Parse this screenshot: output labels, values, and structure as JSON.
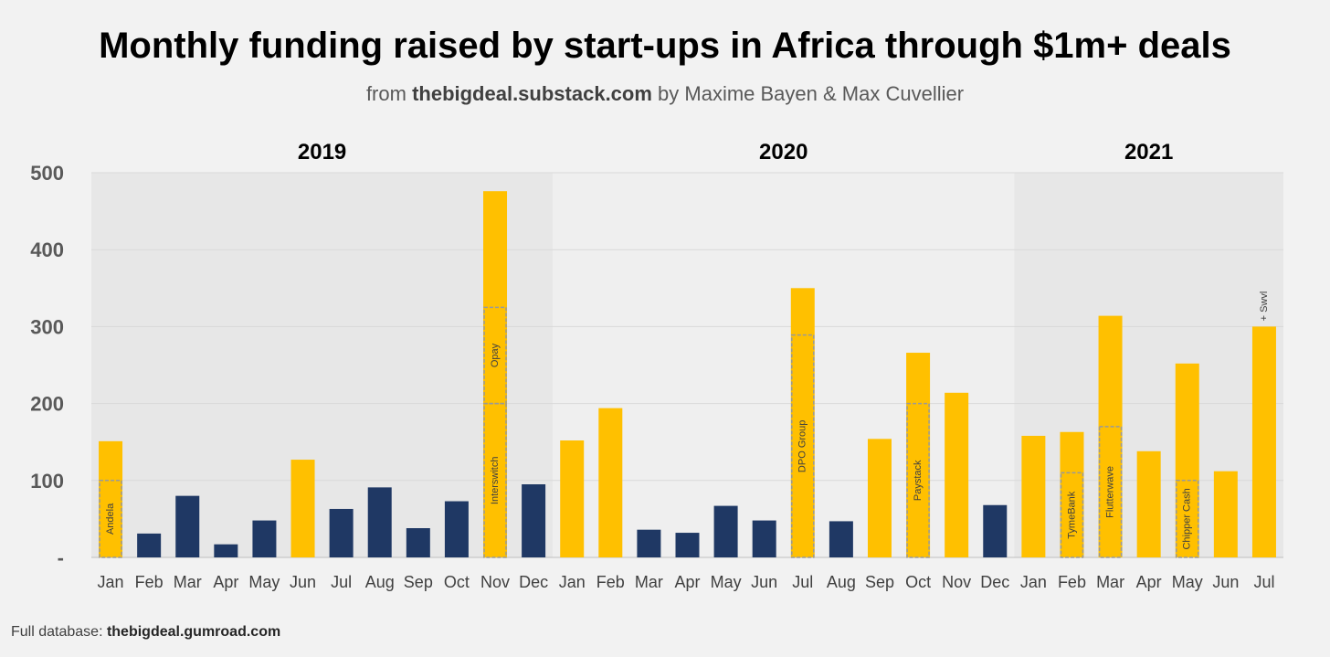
{
  "header": {
    "title": "Monthly funding raised by start-ups in Africa through $1m+ deals",
    "subtitle_prefix": "from ",
    "subtitle_site": "thebigdeal.substack.com",
    "subtitle_suffix": " by Maxime Bayen & Max Cuvellier"
  },
  "footer": {
    "label": "Full database: ",
    "link": "thebigdeal.gumroad.com"
  },
  "colors": {
    "background": "#f2f2f2",
    "band_dark": "#e7e7e7",
    "band_light": "#efefef",
    "highlight_month": "#ffc000",
    "normal_month": "#1f3864",
    "gridline": "#d9d9d9",
    "deal_box_border": "#999999"
  },
  "chart_data": {
    "type": "bar",
    "ylim": [
      0,
      500
    ],
    "yticks": [
      0,
      100,
      200,
      300,
      400,
      500
    ],
    "ytick_labels": [
      "-",
      "100",
      "200",
      "300",
      "400",
      "500"
    ],
    "grid": true,
    "years": [
      {
        "label": "2019",
        "months": 12
      },
      {
        "label": "2020",
        "months": 12
      },
      {
        "label": "2021",
        "months": 7
      }
    ],
    "categories": [
      "Jan",
      "Feb",
      "Mar",
      "Apr",
      "May",
      "Jun",
      "Jul",
      "Aug",
      "Sep",
      "Oct",
      "Nov",
      "Dec",
      "Jan",
      "Feb",
      "Mar",
      "Apr",
      "May",
      "Jun",
      "Jul",
      "Aug",
      "Sep",
      "Oct",
      "Nov",
      "Dec",
      "Jan",
      "Feb",
      "Mar",
      "Apr",
      "May",
      "Jun",
      "Jul"
    ],
    "values": [
      151,
      31,
      80,
      17,
      48,
      127,
      63,
      91,
      38,
      73,
      476,
      95,
      152,
      194,
      36,
      32,
      67,
      48,
      350,
      47,
      154,
      266,
      214,
      68,
      158,
      163,
      314,
      138,
      252,
      112,
      300
    ],
    "highlighted": [
      true,
      false,
      false,
      false,
      false,
      true,
      false,
      false,
      false,
      false,
      true,
      false,
      true,
      true,
      false,
      false,
      false,
      false,
      true,
      false,
      true,
      true,
      true,
      false,
      true,
      true,
      true,
      true,
      true,
      true,
      true
    ],
    "deals": [
      {
        "index": 0,
        "name": "Andela",
        "from": 0,
        "to": 100
      },
      {
        "index": 10,
        "name": "Interswitch",
        "from": 0,
        "to": 200
      },
      {
        "index": 10,
        "name": "Opay",
        "from": 200,
        "to": 325
      },
      {
        "index": 18,
        "name": "DPO Group",
        "from": 0,
        "to": 289
      },
      {
        "index": 21,
        "name": "Paystack",
        "from": 0,
        "to": 200
      },
      {
        "index": 25,
        "name": "TymeBank",
        "from": 0,
        "to": 110
      },
      {
        "index": 26,
        "name": "Flutterwave",
        "from": 0,
        "to": 170
      },
      {
        "index": 28,
        "name": "Chipper Cash",
        "from": 0,
        "to": 100
      }
    ],
    "annotations": [
      {
        "index": 30,
        "text": "+ Swvl"
      }
    ]
  }
}
